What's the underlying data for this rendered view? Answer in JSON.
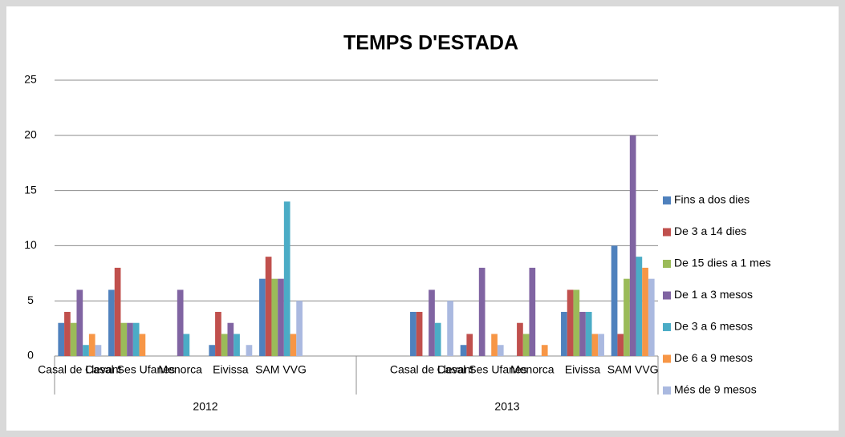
{
  "chart_data": {
    "type": "bar",
    "title": "TEMPS D'ESTADA",
    "categories": [
      "Casal de Llevant",
      "Casal Ses Ufanes",
      "Menorca",
      "Eivissa",
      "SAM VVG",
      null,
      null,
      "Casal de Llevant",
      "Casal Ses Ufanes",
      "Menorca",
      "Eivissa",
      "SAM VVG"
    ],
    "years": [
      "2012",
      "2013"
    ],
    "series": [
      {
        "name": "Fins a dos dies",
        "color": "#4f81bd",
        "values": [
          3,
          6,
          0,
          1,
          7,
          null,
          null,
          4,
          1,
          0,
          4,
          10
        ]
      },
      {
        "name": "De 3 a 14 dies",
        "color": "#c0504d",
        "values": [
          4,
          8,
          0,
          4,
          9,
          null,
          null,
          4,
          2,
          3,
          6,
          2
        ]
      },
      {
        "name": "De 15 dies a 1 mes",
        "color": "#9bbb59",
        "values": [
          3,
          3,
          0,
          2,
          7,
          null,
          null,
          0,
          0,
          2,
          6,
          7
        ]
      },
      {
        "name": "De 1 a 3 mesos",
        "color": "#8064a2",
        "values": [
          6,
          3,
          6,
          3,
          7,
          null,
          null,
          6,
          8,
          8,
          4,
          20
        ]
      },
      {
        "name": "De 3 a 6 mesos",
        "color": "#4bacc6",
        "values": [
          1,
          3,
          2,
          2,
          14,
          null,
          null,
          3,
          0,
          0,
          4,
          9
        ]
      },
      {
        "name": "De 6 a 9 mesos",
        "color": "#f79646",
        "values": [
          2,
          2,
          0,
          0,
          2,
          null,
          null,
          0,
          2,
          1,
          2,
          8
        ]
      },
      {
        "name": "Més de 9 mesos",
        "color": "#aab9e0",
        "values": [
          1,
          0,
          0,
          1,
          5,
          null,
          null,
          5,
          1,
          0,
          2,
          7
        ]
      }
    ],
    "ylim": [
      0,
      25
    ],
    "yticks": [
      0,
      5,
      10,
      15,
      20,
      25
    ],
    "grid": true,
    "legend": "right"
  }
}
